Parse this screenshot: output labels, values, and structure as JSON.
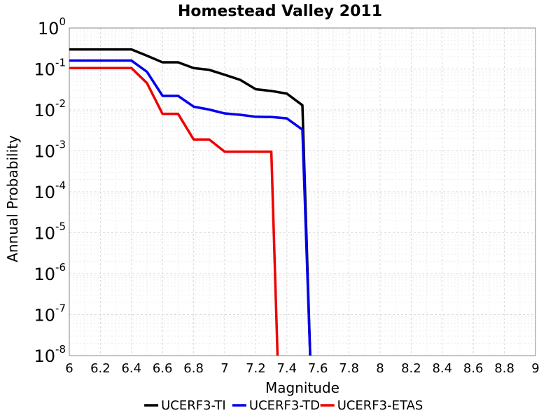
{
  "chart_data": {
    "type": "line",
    "title": "Homestead Valley 2011",
    "xlabel": "Magnitude",
    "ylabel": "Annual Probability",
    "xlim": [
      6,
      9
    ],
    "ylim": [
      1e-08,
      1
    ],
    "yscale": "log",
    "grid": true,
    "legend_position": "bottom",
    "x_ticks": [
      "6",
      "6.2",
      "6.4",
      "6.6",
      "6.8",
      "7",
      "7.2",
      "7.4",
      "7.6",
      "7.8",
      "8",
      "8.2",
      "8.4",
      "8.6",
      "8.8",
      "9"
    ],
    "y_ticks": [
      {
        "base": "10",
        "exp": "0",
        "value": 1
      },
      {
        "base": "10",
        "exp": "-1",
        "value": 0.1
      },
      {
        "base": "10",
        "exp": "-2",
        "value": 0.01
      },
      {
        "base": "10",
        "exp": "-3",
        "value": 0.001
      },
      {
        "base": "10",
        "exp": "-4",
        "value": 0.0001
      },
      {
        "base": "10",
        "exp": "-5",
        "value": 1e-05
      },
      {
        "base": "10",
        "exp": "-6",
        "value": 1e-06
      },
      {
        "base": "10",
        "exp": "-7",
        "value": 1e-07
      },
      {
        "base": "10",
        "exp": "-8",
        "value": 1e-08
      }
    ],
    "series": [
      {
        "name": "UCERF3-TI",
        "color": "#000000",
        "points": [
          [
            6.0,
            0.3
          ],
          [
            6.4,
            0.3
          ],
          [
            6.5,
            0.21
          ],
          [
            6.6,
            0.145
          ],
          [
            6.7,
            0.145
          ],
          [
            6.8,
            0.105
          ],
          [
            6.9,
            0.095
          ],
          [
            7.0,
            0.072
          ],
          [
            7.1,
            0.054
          ],
          [
            7.2,
            0.032
          ],
          [
            7.3,
            0.029
          ],
          [
            7.4,
            0.025
          ],
          [
            7.5,
            0.013
          ],
          [
            7.55,
            1e-08
          ]
        ]
      },
      {
        "name": "UCERF3-TD",
        "color": "#0000ee",
        "points": [
          [
            6.0,
            0.16
          ],
          [
            6.4,
            0.16
          ],
          [
            6.5,
            0.085
          ],
          [
            6.6,
            0.022
          ],
          [
            6.7,
            0.022
          ],
          [
            6.8,
            0.012
          ],
          [
            6.9,
            0.0102
          ],
          [
            7.0,
            0.0082
          ],
          [
            7.1,
            0.0076
          ],
          [
            7.2,
            0.0068
          ],
          [
            7.3,
            0.0067
          ],
          [
            7.4,
            0.0062
          ],
          [
            7.5,
            0.0033
          ],
          [
            7.55,
            1e-08
          ]
        ]
      },
      {
        "name": "UCERF3-ETAS",
        "color": "#ee0000",
        "points": [
          [
            6.0,
            0.105
          ],
          [
            6.4,
            0.105
          ],
          [
            6.5,
            0.045
          ],
          [
            6.6,
            0.008
          ],
          [
            6.7,
            0.008
          ],
          [
            6.8,
            0.0019
          ],
          [
            6.9,
            0.0019
          ],
          [
            7.0,
            0.00095
          ],
          [
            7.1,
            0.00095
          ],
          [
            7.2,
            0.00095
          ],
          [
            7.3,
            0.00095
          ],
          [
            7.34,
            1e-08
          ]
        ]
      }
    ]
  }
}
